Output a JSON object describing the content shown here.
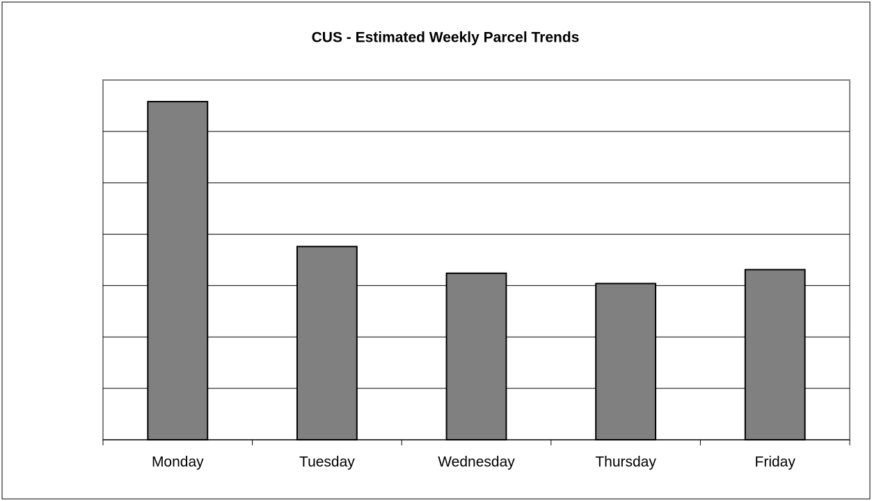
{
  "chart_data": {
    "type": "bar",
    "title": "CUS - Estimated Weekly Parcel Trends",
    "categories": [
      "Monday",
      "Tuesday",
      "Wednesday",
      "Thursday",
      "Friday"
    ],
    "values": [
      6.58,
      3.76,
      3.24,
      3.04,
      3.31
    ],
    "color": "#808080",
    "ylim": [
      0,
      7
    ],
    "yticks": [
      1,
      2,
      3,
      4,
      5,
      6
    ],
    "grid": true
  }
}
